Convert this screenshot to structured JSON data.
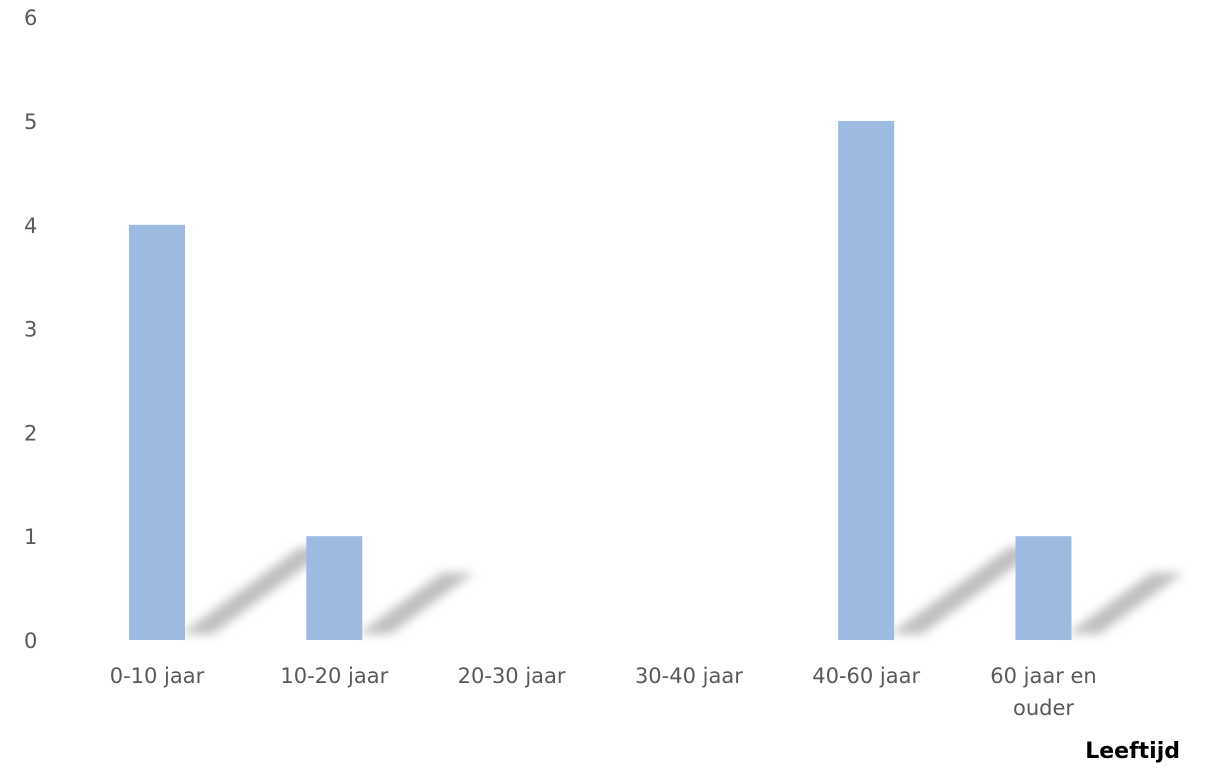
{
  "chart_data": {
    "type": "bar",
    "categories": [
      "0-10 jaar",
      "10-20 jaar",
      "20-30 jaar",
      "30-40 jaar",
      "40-60 jaar",
      "60 jaar en ouder"
    ],
    "category_lines": [
      [
        "0-10 jaar"
      ],
      [
        "10-20 jaar"
      ],
      [
        "20-30 jaar"
      ],
      [
        "30-40 jaar"
      ],
      [
        "40-60 jaar"
      ],
      [
        "60 jaar en",
        "ouder"
      ]
    ],
    "values": [
      4,
      1,
      0,
      0,
      5,
      1
    ],
    "y_ticks": [
      "0",
      "1",
      "2",
      "3",
      "4",
      "5",
      "6"
    ],
    "ylim": [
      0,
      6
    ],
    "xlabel": "Leeftijd",
    "ylabel": "",
    "title": "",
    "grid": false,
    "legend": "none",
    "bar_color": "#9DBBE1",
    "shadow": true
  }
}
